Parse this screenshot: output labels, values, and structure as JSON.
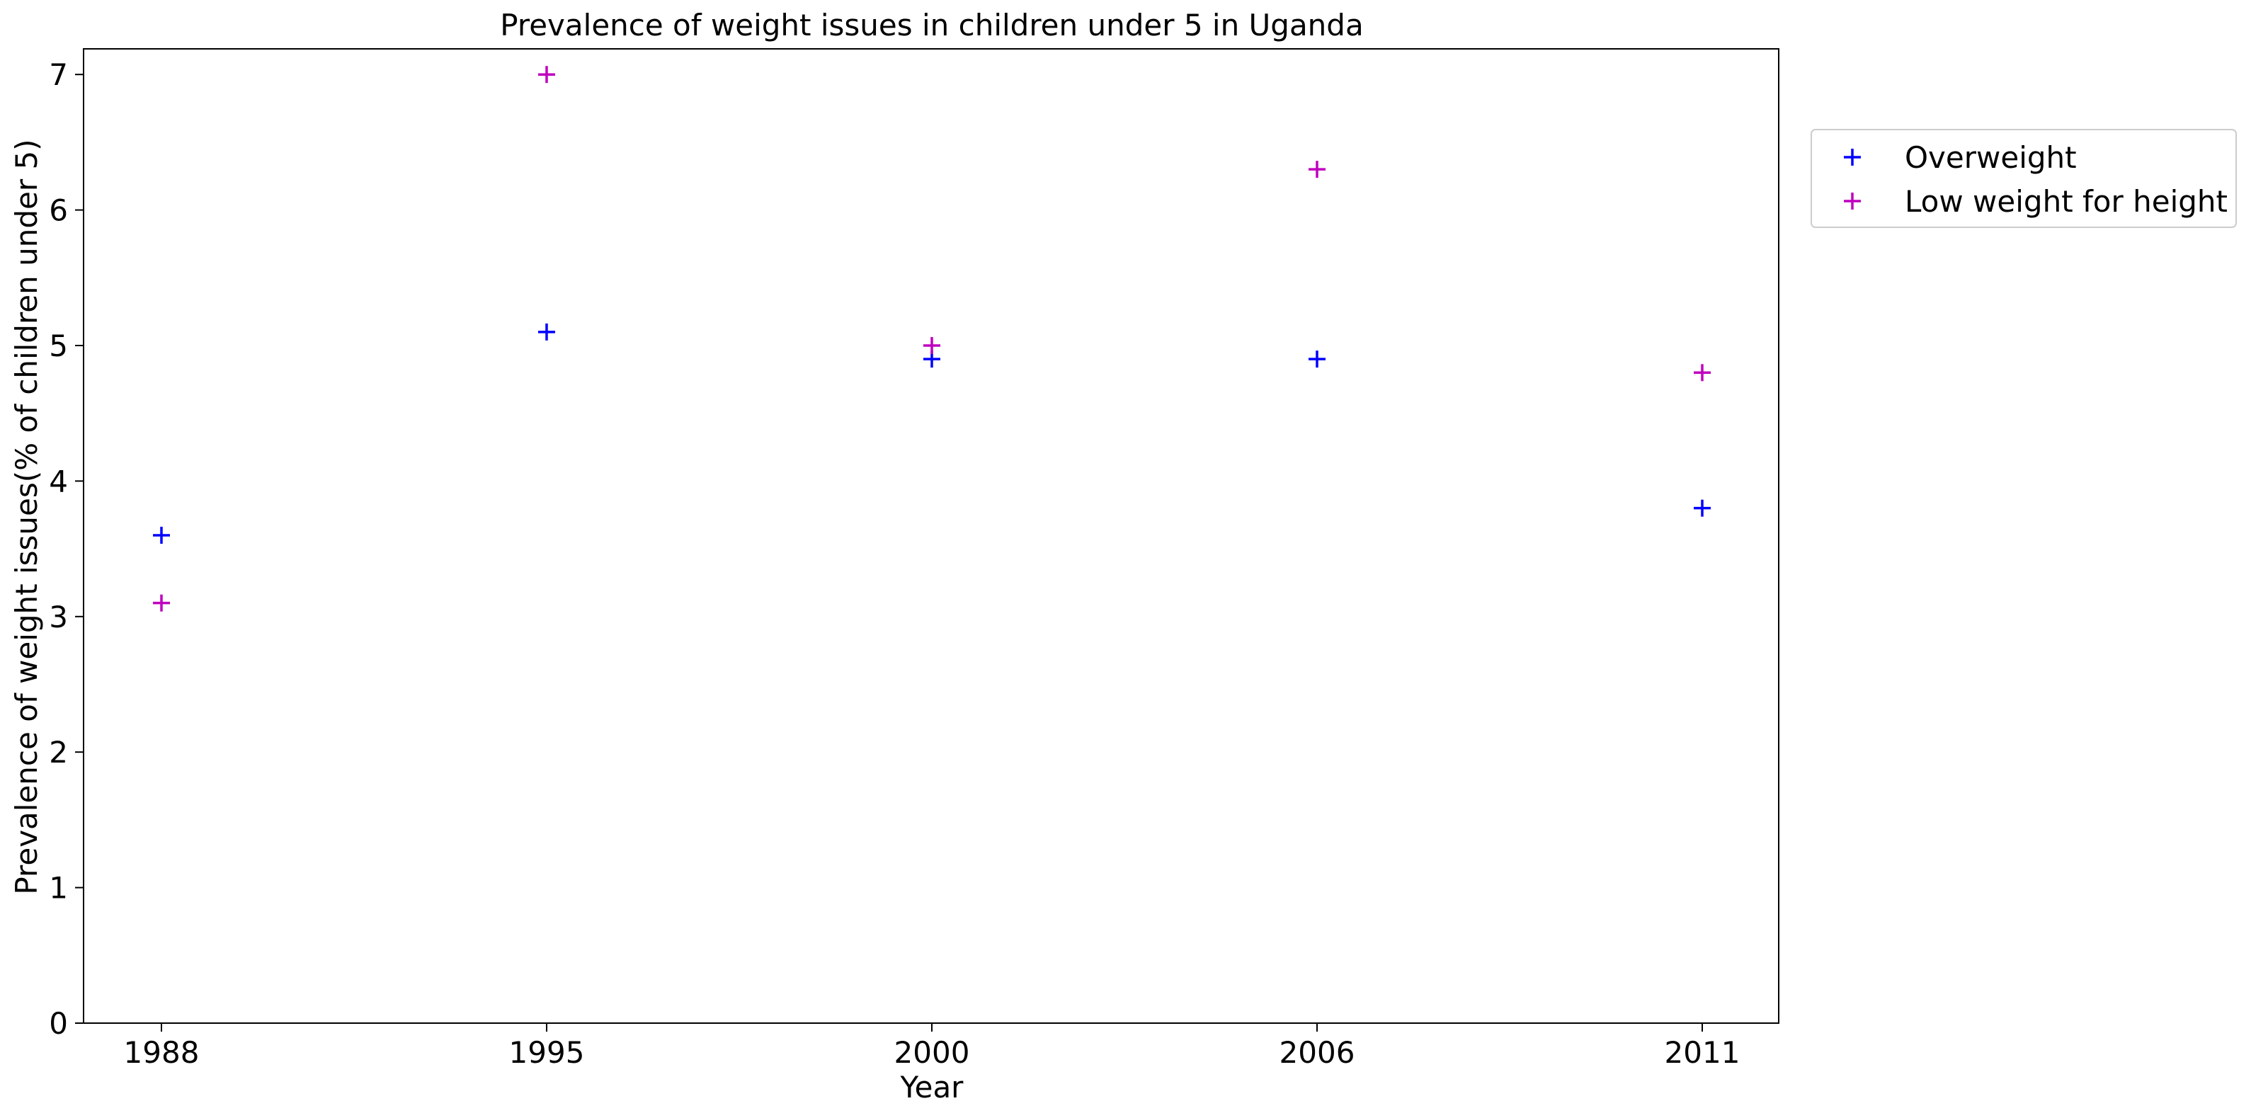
{
  "chart_data": {
    "type": "scatter",
    "title": "Prevalence of weight issues in children under 5 in Uganda",
    "xlabel": "Year",
    "ylabel": "Prevalence of weight issues(% of children under 5)",
    "categories": [
      "1988",
      "1995",
      "2000",
      "2006",
      "2011"
    ],
    "ylim": [
      0,
      7.2
    ],
    "yticks": [
      0,
      1,
      2,
      3,
      4,
      5,
      6,
      7
    ],
    "grid": false,
    "legend_position": "outside-right-top",
    "series": [
      {
        "name": "Overweight",
        "color": "#0000ff",
        "marker": "plus",
        "values": [
          3.6,
          5.1,
          4.9,
          4.9,
          3.8
        ]
      },
      {
        "name": "Low weight for height",
        "color": "#bf00bf",
        "marker": "plus",
        "values": [
          3.1,
          7.0,
          5.0,
          6.3,
          4.8
        ]
      }
    ]
  }
}
